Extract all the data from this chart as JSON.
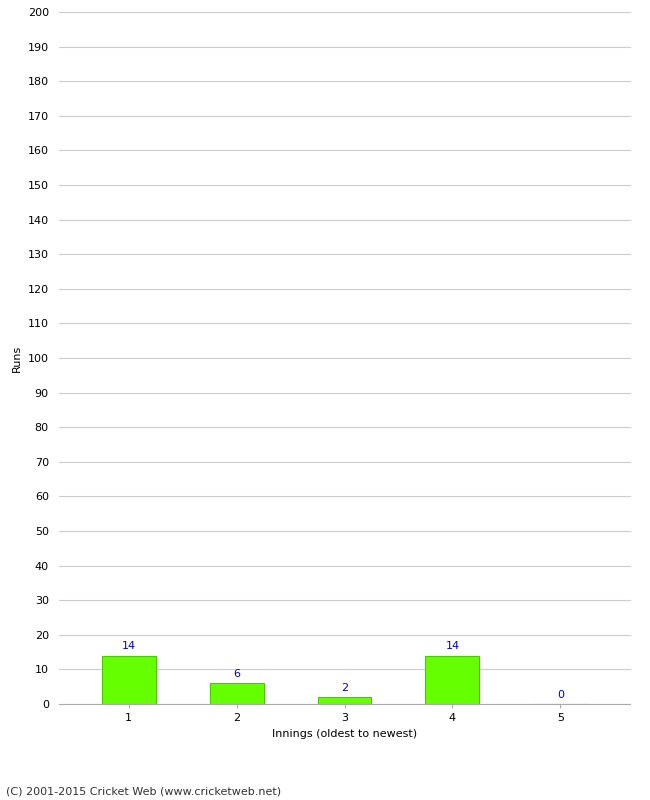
{
  "categories": [
    1,
    2,
    3,
    4,
    5
  ],
  "values": [
    14,
    6,
    2,
    14,
    0
  ],
  "bar_color": "#66ff00",
  "bar_edge_color": "#44cc00",
  "label_color": "#0000cc",
  "xlabel": "Innings (oldest to newest)",
  "ylabel": "Runs",
  "ylim": [
    0,
    200
  ],
  "yticks": [
    0,
    10,
    20,
    30,
    40,
    50,
    60,
    70,
    80,
    90,
    100,
    110,
    120,
    130,
    140,
    150,
    160,
    170,
    180,
    190,
    200
  ],
  "grid_color": "#cccccc",
  "background_color": "#ffffff",
  "footer": "(C) 2001-2015 Cricket Web (www.cricketweb.net)",
  "footer_fontsize": 8,
  "label_fontsize": 8,
  "axis_fontsize": 8,
  "ylabel_fontsize": 8,
  "bar_width": 0.5
}
